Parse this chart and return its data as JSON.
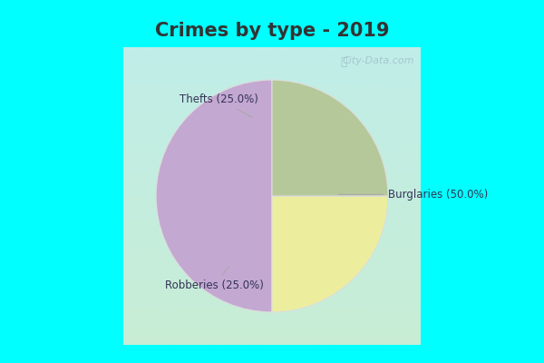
{
  "title": "Crimes by type - 2019",
  "title_fontsize": 15,
  "title_fontweight": "bold",
  "title_color": "#333333",
  "slices": [
    {
      "label": "Burglaries (50.0%)",
      "value": 50.0,
      "color": "#C3A8D1"
    },
    {
      "label": "Thefts (25.0%)",
      "value": 25.0,
      "color": "#ECEE9D"
    },
    {
      "label": "Robberies (25.0%)",
      "value": 25.0,
      "color": "#B5C89A"
    }
  ],
  "start_angle": 90,
  "border_color": "#00FFFF",
  "bg_top_color": "#B8EDE8",
  "bg_bottom_color": "#C8EDD5",
  "watermark": "City-Data.com",
  "figsize": [
    6.0,
    4.0
  ],
  "dpi": 100,
  "label_color": "#333355",
  "label_fontsize": 8.5,
  "line_color": "#AAAAAA"
}
